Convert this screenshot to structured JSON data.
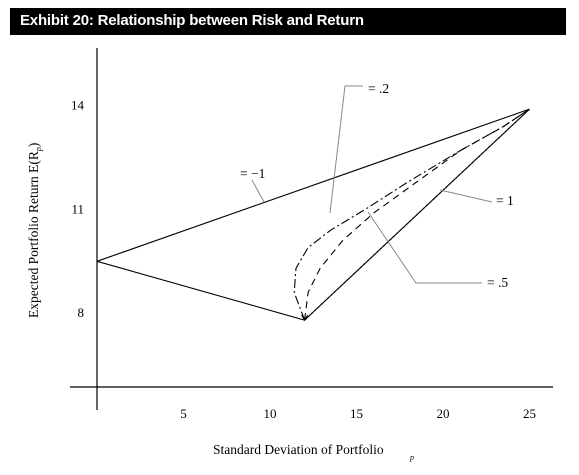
{
  "title": "Exhibit 20: Relationship between Risk and Return",
  "chart_data": {
    "type": "line",
    "title": "Exhibit 20: Relationship between Risk and Return",
    "xlabel": "Standard Deviation of Portfolio",
    "xlabel_sub": "p",
    "ylabel": "Expected Portfolio Return E(R",
    "ylabel_sub": "p",
    "ylabel_close": ")",
    "xlim": [
      0,
      26
    ],
    "ylim": [
      5,
      16
    ],
    "x_ticks": [
      "5",
      "10",
      "15",
      "20",
      "25"
    ],
    "y_ticks": [
      "8",
      "11",
      "14"
    ],
    "series": [
      {
        "name": "= −1",
        "style": "solid",
        "x": [
          0,
          12,
          25
        ],
        "y": [
          9.5,
          7.8,
          13.9
        ]
      },
      {
        "name": "= −1",
        "style": "solid",
        "x": [
          0,
          25
        ],
        "y": [
          9.5,
          13.9
        ]
      },
      {
        "name": "= .2",
        "style": "dashdot",
        "x": [
          12,
          11.4,
          11.5,
          12.2,
          13.5,
          15.5,
          18,
          21,
          23.5,
          25
        ],
        "y": [
          7.8,
          8.6,
          9.3,
          9.9,
          10.4,
          11,
          11.8,
          12.7,
          13.4,
          13.9
        ]
      },
      {
        "name": "= .5",
        "style": "dashed",
        "x": [
          12,
          12.2,
          12.9,
          14.2,
          16,
          18.5,
          21,
          23.5,
          25
        ],
        "y": [
          7.8,
          8.6,
          9.3,
          10.1,
          10.9,
          11.8,
          12.7,
          13.4,
          13.9
        ]
      },
      {
        "name": "= 1",
        "style": "dotted",
        "x": [
          12,
          25
        ],
        "y": [
          7.8,
          13.9
        ]
      }
    ],
    "annotations": [
      {
        "text": "= −1"
      },
      {
        "text": "= .2"
      },
      {
        "text": "= .5"
      },
      {
        "text": "= 1"
      }
    ],
    "grid": false,
    "legend": "none"
  }
}
